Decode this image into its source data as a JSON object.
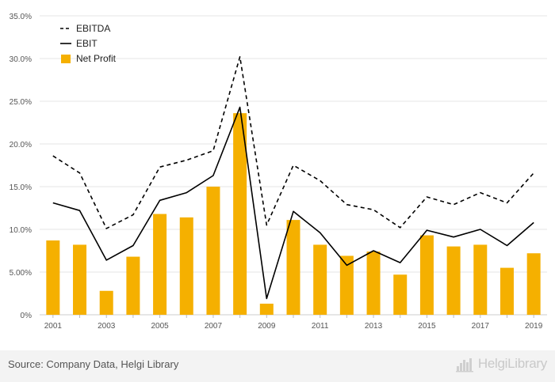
{
  "chart_data": {
    "type": "bar",
    "x": [
      "2001",
      "2002",
      "2003",
      "2004",
      "2005",
      "2006",
      "2007",
      "2008",
      "2009",
      "2010",
      "2011",
      "2012",
      "2013",
      "2014",
      "2015",
      "2016",
      "2017",
      "2018",
      "2019"
    ],
    "x_tick_labels": [
      "2001",
      "2003",
      "2005",
      "2007",
      "2009",
      "2011",
      "2013",
      "2015",
      "2017",
      "2019"
    ],
    "ylim": [
      0,
      35
    ],
    "y_ticks": [
      0,
      5,
      10,
      15,
      20,
      25,
      30,
      35
    ],
    "y_tick_labels": [
      "0%",
      "5.00%",
      "10.0%",
      "15.0%",
      "20.0%",
      "25.0%",
      "30.0%",
      "35.0%"
    ],
    "grid": "horizontal",
    "legend_position": "top-left",
    "series": [
      {
        "name": "EBITDA",
        "type": "line",
        "style": "dashed",
        "color": "#000000",
        "values": [
          18.6,
          16.6,
          10.1,
          11.7,
          17.3,
          18.1,
          19.2,
          30.2,
          10.5,
          17.5,
          15.7,
          12.9,
          12.3,
          10.2,
          13.8,
          12.9,
          14.3,
          13.1,
          16.6
        ]
      },
      {
        "name": "EBIT",
        "type": "line",
        "style": "solid",
        "color": "#000000",
        "values": [
          13.1,
          12.2,
          6.4,
          8.1,
          13.4,
          14.3,
          16.3,
          24.3,
          1.9,
          12.1,
          9.6,
          5.8,
          7.5,
          6.1,
          9.9,
          9.1,
          10.0,
          8.1,
          10.8
        ]
      },
      {
        "name": "Net Profit",
        "type": "bar",
        "color": "#f5b000",
        "values": [
          8.7,
          8.2,
          2.8,
          6.8,
          11.8,
          11.4,
          15.0,
          23.6,
          1.3,
          11.1,
          8.2,
          6.9,
          7.4,
          4.7,
          9.3,
          8.0,
          8.2,
          5.5,
          7.2
        ]
      }
    ]
  },
  "footer": {
    "source": "Source: Company Data, Helgi Library",
    "logo_text": "HelgiLibrary",
    "logo_icon": "helgi-library-logo-icon"
  },
  "colors": {
    "bar": "#f5b000",
    "line": "#000000",
    "grid": "#e6e6e6",
    "footer_bg": "#f3f3f3"
  }
}
